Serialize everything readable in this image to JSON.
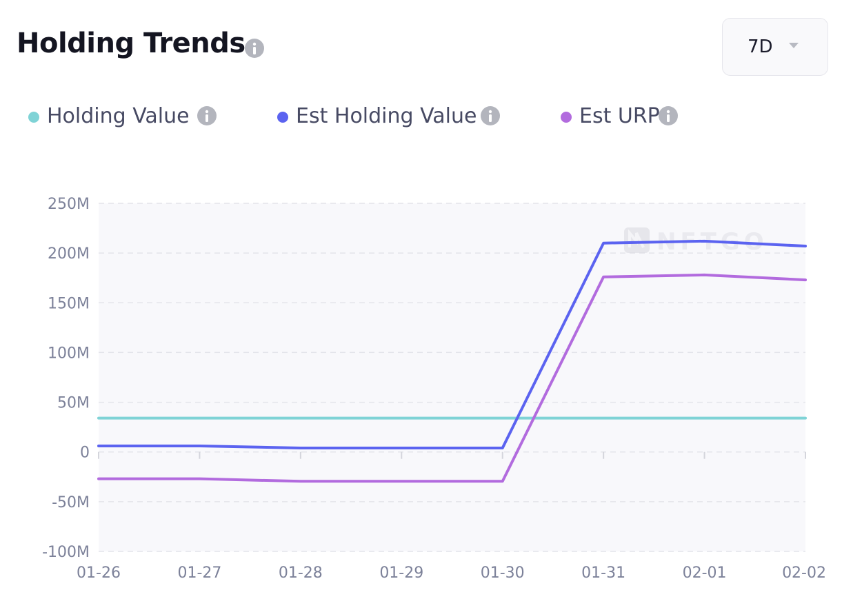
{
  "header": {
    "title": "Holding Trends",
    "period": "7D"
  },
  "colors": {
    "holding_value": "#7fd3d6",
    "est_holding_value": "#5b63f0",
    "est_urp": "#b26bde",
    "grid": "#e3e4ea",
    "plot_bg": "#f8f8fb",
    "tick": "#7c8199",
    "info_icon": "#b3b5bd"
  },
  "legend": [
    {
      "label": "Holding Value",
      "color": "#7fd3d6"
    },
    {
      "label": "Est Holding Value",
      "color": "#5b63f0"
    },
    {
      "label": "Est URP",
      "color": "#b26bde"
    }
  ],
  "chart_data": {
    "type": "line",
    "title": "Holding Trends",
    "xlabel": "",
    "ylabel": "",
    "categories": [
      "01-26",
      "01-27",
      "01-28",
      "01-29",
      "01-30",
      "01-31",
      "02-01",
      "02-02"
    ],
    "ylim": [
      -100000000,
      250000000
    ],
    "yticks": [
      250000000,
      200000000,
      150000000,
      100000000,
      50000000,
      0,
      -50000000,
      -100000000
    ],
    "ytick_labels": [
      "250M",
      "200M",
      "150M",
      "100M",
      "50M",
      "0",
      "-50M",
      "-100M"
    ],
    "grid": true,
    "legend_position": "top-left",
    "series": [
      {
        "name": "Holding Value",
        "values": [
          34000000,
          34000000,
          34000000,
          34000000,
          34000000,
          34000000,
          34000000,
          34000000
        ]
      },
      {
        "name": "Est Holding Value",
        "values": [
          6000000,
          6000000,
          4000000,
          4000000,
          4000000,
          210000000,
          212000000,
          207000000
        ]
      },
      {
        "name": "Est URP",
        "values": [
          -27000000,
          -27000000,
          -29500000,
          -29500000,
          -29500000,
          176000000,
          178000000,
          173000000
        ]
      }
    ]
  }
}
